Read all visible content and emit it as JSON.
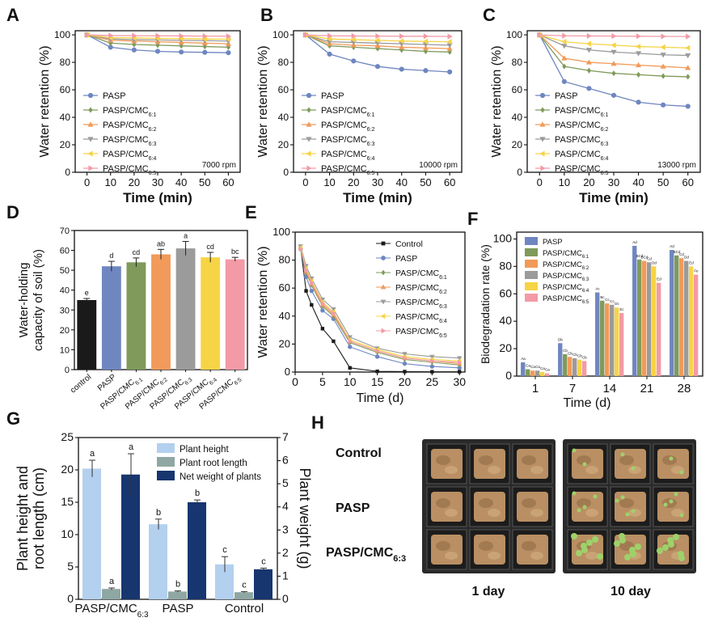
{
  "panel_letters": [
    "A",
    "B",
    "C",
    "D",
    "E",
    "F",
    "G",
    "H"
  ],
  "legend_labels": [
    "PASP",
    "PASP/CMC6:1",
    "PASP/CMC6:2",
    "PASP/CMC6:3",
    "PASP/CMC6:4",
    "PASP/CMC6:5"
  ],
  "colors": {
    "PASP": "#6f86c0",
    "CMC61": "#7f9a5a",
    "CMC62": "#f19a5a",
    "CMC63": "#9b9b9b",
    "CMC64": "#f6d445",
    "CMC65": "#f39aa6",
    "control": "#1a1a1a",
    "bar_height": "#b3d0ee",
    "bar_root": "#8fa7a3",
    "bar_weight": "#17356f"
  },
  "chart_data": [
    {
      "panel": "A",
      "type": "line",
      "xlabel": "Time (min)",
      "ylabel": "Water retention (%)",
      "annotation": "7000 rpm",
      "xlim": [
        -5,
        65
      ],
      "ylim": [
        0,
        103
      ],
      "xticks": [
        0,
        10,
        20,
        30,
        40,
        50,
        60
      ],
      "yticks": [
        0,
        20,
        40,
        60,
        80,
        100
      ],
      "x": [
        0,
        10,
        20,
        30,
        40,
        50,
        60
      ],
      "series": [
        {
          "name": "PASP",
          "values": [
            100,
            91,
            89,
            88,
            87.5,
            87.3,
            87
          ]
        },
        {
          "name": "PASP/CMC6:1",
          "values": [
            100,
            94,
            93,
            92.5,
            92,
            91.5,
            91
          ]
        },
        {
          "name": "PASP/CMC6:2",
          "values": [
            100,
            96,
            95.5,
            95,
            94.5,
            94,
            93.5
          ]
        },
        {
          "name": "PASP/CMC6:3",
          "values": [
            100,
            97,
            96.5,
            96.3,
            96,
            95.8,
            95.5
          ]
        },
        {
          "name": "PASP/CMC6:4",
          "values": [
            100,
            98,
            97.8,
            97.5,
            97.3,
            97,
            96.8
          ]
        },
        {
          "name": "PASP/CMC6:5",
          "values": [
            100,
            99.5,
            99.4,
            99.3,
            99.2,
            99.1,
            99
          ]
        }
      ]
    },
    {
      "panel": "B",
      "type": "line",
      "xlabel": "Time (min)",
      "ylabel": "Water retention (%)",
      "annotation": "10000 rpm",
      "xlim": [
        -5,
        65
      ],
      "ylim": [
        0,
        103
      ],
      "xticks": [
        0,
        10,
        20,
        30,
        40,
        50,
        60
      ],
      "yticks": [
        0,
        20,
        40,
        60,
        80,
        100
      ],
      "x": [
        0,
        10,
        20,
        30,
        40,
        50,
        60
      ],
      "series": [
        {
          "name": "PASP",
          "values": [
            100,
            86,
            81,
            77,
            75,
            74,
            73
          ]
        },
        {
          "name": "PASP/CMC6:1",
          "values": [
            100,
            92,
            91,
            90,
            89,
            88,
            87.5
          ]
        },
        {
          "name": "PASP/CMC6:2",
          "values": [
            100,
            93.5,
            92.5,
            92,
            91,
            90.5,
            90
          ]
        },
        {
          "name": "PASP/CMC6:3",
          "values": [
            100,
            95,
            94.5,
            94,
            93.5,
            93,
            92.5
          ]
        },
        {
          "name": "PASP/CMC6:4",
          "values": [
            100,
            97,
            96.5,
            96,
            95.5,
            95.2,
            95
          ]
        },
        {
          "name": "PASP/CMC6:5",
          "values": [
            100,
            99.3,
            99.2,
            99.1,
            99,
            99,
            98.8
          ]
        }
      ]
    },
    {
      "panel": "C",
      "type": "line",
      "xlabel": "Time (min)",
      "ylabel": "Water retention (%)",
      "annotation": "13000 rpm",
      "xlim": [
        -5,
        65
      ],
      "ylim": [
        0,
        103
      ],
      "xticks": [
        0,
        10,
        20,
        30,
        40,
        50,
        60
      ],
      "yticks": [
        0,
        20,
        40,
        60,
        80,
        100
      ],
      "x": [
        0,
        10,
        20,
        30,
        40,
        50,
        60
      ],
      "series": [
        {
          "name": "PASP",
          "values": [
            100,
            66,
            61,
            56,
            51,
            49,
            48
          ]
        },
        {
          "name": "PASP/CMC6:1",
          "values": [
            100,
            77,
            74,
            72,
            71,
            70,
            69.5
          ]
        },
        {
          "name": "PASP/CMC6:2",
          "values": [
            100,
            83,
            80,
            79,
            78,
            77,
            76
          ]
        },
        {
          "name": "PASP/CMC6:3",
          "values": [
            100,
            92,
            89,
            87.5,
            86.5,
            85.5,
            85
          ]
        },
        {
          "name": "PASP/CMC6:4",
          "values": [
            100,
            95,
            93.5,
            92.5,
            91.5,
            91,
            90.5
          ]
        },
        {
          "name": "PASP/CMC6:5",
          "values": [
            100,
            99.3,
            99.2,
            99.1,
            99,
            98.9,
            98.8
          ]
        }
      ]
    },
    {
      "panel": "D",
      "type": "bar",
      "ylabel_lines": [
        "Water-holding",
        "capacity of soil (%)"
      ],
      "ylim": [
        0,
        70
      ],
      "yticks": [
        0,
        10,
        20,
        30,
        40,
        50,
        60,
        70
      ],
      "categories": [
        "control",
        "PASP",
        "PASP/CMC6:1",
        "PASP/CMC6:2",
        "PASP/CMC6:3",
        "PASP/CMC6:4",
        "PASP/CMC6:5"
      ],
      "values": [
        35,
        52,
        54,
        58,
        61,
        56.5,
        55.5
      ],
      "errors": [
        0.8,
        2.5,
        2.2,
        2.5,
        3.5,
        2.5,
        1.0
      ],
      "letters": [
        "e",
        "d",
        "cd",
        "ab",
        "a",
        "cd",
        "bc"
      ]
    },
    {
      "panel": "E",
      "type": "line",
      "xlabel": "Time (d)",
      "ylabel": "Water retention (%)",
      "xlim": [
        0,
        31
      ],
      "ylim": [
        0,
        100
      ],
      "xticks": [
        0,
        5,
        10,
        15,
        20,
        25,
        30
      ],
      "yticks": [
        0,
        20,
        40,
        60,
        80,
        100
      ],
      "x": [
        1,
        2,
        3,
        5,
        7,
        10,
        15,
        20,
        25,
        30
      ],
      "series": [
        {
          "name": "Control",
          "values": [
            89,
            58,
            48,
            31,
            22,
            3,
            0.5,
            0.3,
            0.2,
            0.2
          ]
        },
        {
          "name": "PASP",
          "values": [
            88,
            68,
            58,
            44,
            38,
            18,
            11,
            6,
            4,
            3
          ]
        },
        {
          "name": "PASP/CMC6:1",
          "values": [
            88,
            71,
            62,
            47,
            40,
            21,
            14,
            9,
            7,
            5
          ]
        },
        {
          "name": "PASP/CMC6:2",
          "values": [
            89,
            72,
            63,
            48,
            41,
            22,
            15,
            10,
            8,
            6
          ]
        },
        {
          "name": "PASP/CMC6:3",
          "values": [
            90,
            76,
            67,
            52,
            45,
            25,
            17,
            13,
            11,
            10
          ]
        },
        {
          "name": "PASP/CMC6:4",
          "values": [
            89,
            74,
            65,
            50,
            43,
            23,
            16,
            11,
            9,
            8
          ]
        },
        {
          "name": "PASP/CMC6:5",
          "values": [
            88,
            73,
            64,
            49,
            42,
            22,
            15,
            10,
            8,
            7
          ]
        }
      ]
    },
    {
      "panel": "F",
      "type": "bar",
      "xlabel": "Time (d)",
      "ylabel": "Biodegradation rate (%)",
      "ylim": [
        0,
        105
      ],
      "yticks": [
        0,
        20,
        40,
        60,
        80,
        100
      ],
      "categories": [
        "1",
        "7",
        "14",
        "21",
        "28"
      ],
      "series": [
        {
          "name": "PASP",
          "values": [
            10,
            24,
            61,
            95,
            92
          ]
        },
        {
          "name": "PASP/CMC6:1",
          "values": [
            5,
            16,
            55,
            85,
            88
          ]
        },
        {
          "name": "PASP/CMC6:2",
          "values": [
            4,
            14,
            53,
            84,
            86
          ]
        },
        {
          "name": "PASP/CMC6:3",
          "values": [
            4,
            13,
            52,
            83,
            84
          ]
        },
        {
          "name": "PASP/CMC6:4",
          "values": [
            3,
            12,
            50,
            80,
            80
          ]
        },
        {
          "name": "PASP/CMC6:5",
          "values": [
            2,
            11,
            46,
            68,
            74
          ]
        }
      ],
      "letter_labels": [
        [
          "Aa",
          "Ca",
          "Ca",
          "Ca",
          "Ca",
          "Ca"
        ],
        [
          "Db",
          "Cb",
          "Cb",
          "Cb",
          "Cb",
          "Cb"
        ],
        [
          "Ac",
          "Bc",
          "Cc",
          "Cc",
          "Dc",
          "Ec"
        ],
        [
          "Ad",
          "BCd",
          "BCd",
          "Cd",
          "Dd",
          "Ed"
        ],
        [
          "Ad",
          "BCd",
          "Cd",
          "Dd",
          "Ed",
          "Fe"
        ]
      ]
    },
    {
      "panel": "G",
      "type": "bar",
      "ylabel_left_lines": [
        "Plant height and",
        "root length (cm)"
      ],
      "ylabel_right": "Plant weight (g)",
      "ylim_left": [
        0,
        25
      ],
      "ylim_right": [
        0,
        7
      ],
      "yticks_left": [
        0,
        5,
        10,
        15,
        20,
        25
      ],
      "yticks_right": [
        0,
        1,
        2,
        3,
        4,
        5,
        6,
        7
      ],
      "categories": [
        "PASP/CMC6:3",
        "PASP",
        "Control"
      ],
      "series": [
        {
          "name": "Plant height",
          "axis": "left",
          "values": [
            20.2,
            11.6,
            5.4
          ],
          "errors": [
            1.3,
            0.8,
            1.2
          ],
          "letters": [
            "a",
            "b",
            "c"
          ]
        },
        {
          "name": "Plant root length",
          "axis": "left",
          "values": [
            1.6,
            1.2,
            1.1
          ],
          "errors": [
            0.15,
            0.1,
            0.1
          ],
          "letters": [
            "a",
            "b",
            "c"
          ]
        },
        {
          "name": "Net weight of plants",
          "axis": "right",
          "values": [
            5.4,
            4.2,
            1.3
          ],
          "errors": [
            0.9,
            0.1,
            0.05
          ],
          "letters": [
            "a",
            "b",
            "c"
          ]
        }
      ]
    }
  ],
  "photos": {
    "row_labels": [
      "Control",
      "PASP",
      "PASP/CMC6:3"
    ],
    "captions": [
      "1 day",
      "10 day"
    ]
  }
}
